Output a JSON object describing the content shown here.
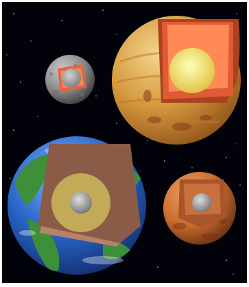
{
  "image": {
    "subject": "cutaway-illustration",
    "colors": {
      "space": "#02030a",
      "frame": "#ffffff",
      "mercury_surface": "#8f8f8f",
      "mercury_mantle": "#e8623f",
      "mercury_core": "#9a9a9a",
      "venus_surface": "#d59a3e",
      "venus_crust": "#e05a34",
      "venus_mantle": "#ff8a55",
      "venus_core": "#f6e870",
      "earth_ocean": "#2a66c9",
      "earth_land": "#3e8f3a",
      "earth_mantle": "#8a5b46",
      "earth_outer_core": "#c8b35a",
      "earth_inner_core": "#b9b9b9",
      "mars_surface": "#c86a2e",
      "mars_mantle": "#a8552b",
      "mars_core": "#a7a7a7"
    }
  }
}
